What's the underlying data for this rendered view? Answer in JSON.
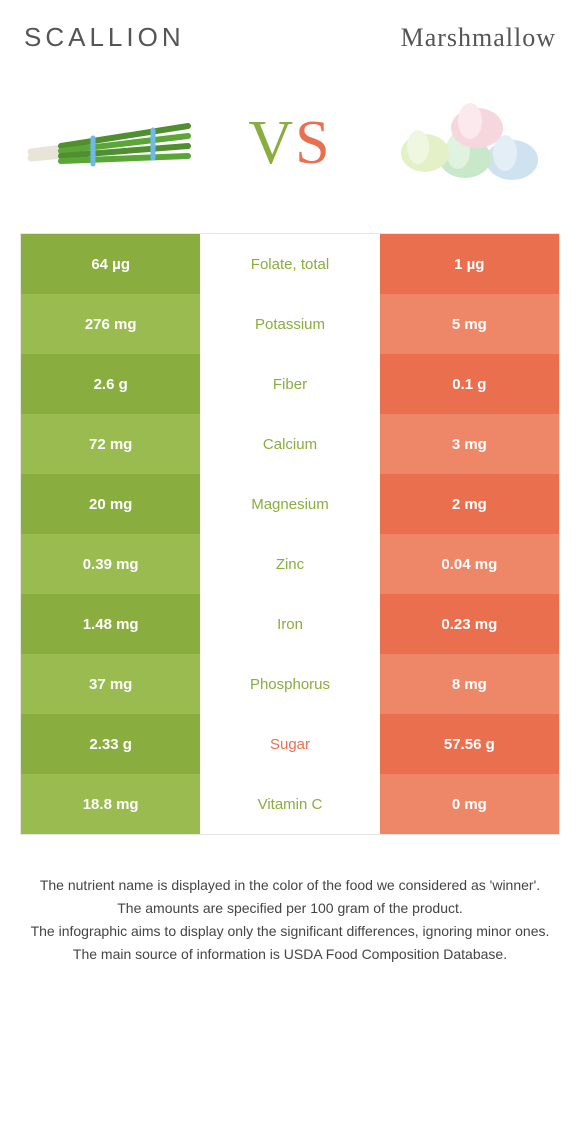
{
  "header": {
    "left": "SCALLION",
    "right": "Marshmallow"
  },
  "vs": {
    "v": "V",
    "s": "S"
  },
  "colors": {
    "left_dark": "#8aad3f",
    "left_light": "#9abb4f",
    "right_dark": "#e96f4f",
    "right_light": "#ee8668"
  },
  "rows": [
    {
      "left": "64 µg",
      "name": "Folate, total",
      "right": "1 µg",
      "winner": "left"
    },
    {
      "left": "276 mg",
      "name": "Potassium",
      "right": "5 mg",
      "winner": "left"
    },
    {
      "left": "2.6 g",
      "name": "Fiber",
      "right": "0.1 g",
      "winner": "left"
    },
    {
      "left": "72 mg",
      "name": "Calcium",
      "right": "3 mg",
      "winner": "left"
    },
    {
      "left": "20 mg",
      "name": "Magnesium",
      "right": "2 mg",
      "winner": "left"
    },
    {
      "left": "0.39 mg",
      "name": "Zinc",
      "right": "0.04 mg",
      "winner": "left"
    },
    {
      "left": "1.48 mg",
      "name": "Iron",
      "right": "0.23 mg",
      "winner": "left"
    },
    {
      "left": "37 mg",
      "name": "Phosphorus",
      "right": "8 mg",
      "winner": "left"
    },
    {
      "left": "2.33 g",
      "name": "Sugar",
      "right": "57.56 g",
      "winner": "right"
    },
    {
      "left": "18.8 mg",
      "name": "Vitamin C",
      "right": "0 mg",
      "winner": "left"
    }
  ],
  "footer": {
    "l1": "The nutrient name is displayed in the color of the food we considered as 'winner'.",
    "l2": "The amounts are specified per 100 gram of the product.",
    "l3": "The infographic aims to display only the significant differences, ignoring minor ones.",
    "l4": "The main source of information is USDA Food Composition Database."
  }
}
